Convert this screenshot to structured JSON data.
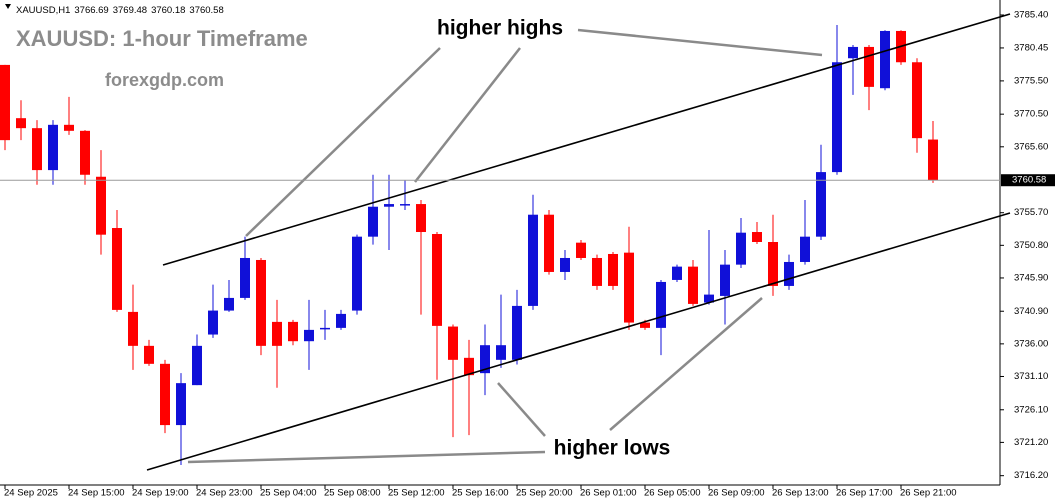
{
  "chart_data": {
    "type": "candlestick",
    "symbol": "XAUUSD,H1",
    "title": "XAUUSD: 1-hour Timeframe",
    "subtitle": "forexgdp.com",
    "annotations": [
      "higher highs",
      "higher lows"
    ],
    "up_color": "#1010d8",
    "down_color": "#ff0000",
    "categories": [
      "24 Sep 2025",
      null,
      null,
      null,
      "24 Sep 15:00",
      null,
      null,
      null,
      "24 Sep 19:00",
      null,
      null,
      null,
      "24 Sep 23:00",
      null,
      null,
      null,
      "25 Sep 04:00",
      null,
      null,
      null,
      "25 Sep 08:00",
      null,
      null,
      null,
      "25 Sep 12:00",
      null,
      null,
      null,
      "25 Sep 16:00",
      null,
      null,
      null,
      "25 Sep 20:00",
      null,
      null,
      null,
      "26 Sep 01:00",
      null,
      null,
      null,
      "26 Sep 05:00",
      null,
      null,
      null,
      "26 Sep 09:00",
      null,
      null,
      null,
      "26 Sep 13:00",
      null,
      null,
      null,
      "26 Sep 17:00",
      null,
      null,
      null,
      "26 Sep 21:00",
      null,
      null
    ],
    "open": [
      3777.9,
      3769.9,
      3768.4,
      3762.1,
      3768.9,
      3768.0,
      3761.1,
      3753.4,
      3740.8,
      3735.7,
      3733.0,
      3723.8,
      3729.8,
      3737.4,
      3741.0,
      3742.9,
      3748.6,
      3739.3,
      3739.3,
      3736.4,
      3738.3,
      3738.4,
      3741.0,
      3752.1,
      3756.6,
      3757.0,
      3757.0,
      3752.5,
      3738.6,
      3733.9,
      3731.6,
      3733.6,
      3733.6,
      3741.7,
      3755.4,
      3746.8,
      3751.2,
      3748.9,
      3749.5,
      3749.7,
      3739.2,
      3738.4,
      3745.6,
      3747.6,
      3742.2,
      3743.2,
      3747.9,
      3752.8,
      3751.3,
      3744.7,
      3748.3,
      3752.1,
      3761.8,
      3778.9,
      3780.6,
      3774.4,
      3783.0,
      3778.3,
      3766.69
    ],
    "high": [
      3777.9,
      3772.6,
      3769.6,
      3769.6,
      3773.1,
      3768.1,
      3765.1,
      3756.1,
      3744.9,
      3736.6,
      3733.6,
      3731.6,
      3737.4,
      3744.9,
      3745.6,
      3752.1,
      3748.9,
      3742.6,
      3739.6,
      3742.6,
      3741.1,
      3741.1,
      3752.4,
      3761.4,
      3761.4,
      3760.6,
      3757.6,
      3752.8,
      3738.9,
      3736.6,
      3738.9,
      3743.4,
      3744.1,
      3758.4,
      3756.1,
      3750.1,
      3751.6,
      3749.4,
      3749.8,
      3753.6,
      3739.6,
      3745.6,
      3747.9,
      3748.6,
      3753.1,
      3750.1,
      3754.9,
      3754.3,
      3755.4,
      3749.4,
      3757.6,
      3765.9,
      3783.9,
      3780.9,
      3780.9,
      3783.1,
      3783.1,
      3778.9,
      3769.48
    ],
    "low": [
      3765.1,
      3766.6,
      3759.9,
      3759.9,
      3767.4,
      3759.9,
      3749.4,
      3740.8,
      3732.1,
      3732.7,
      3722.6,
      3717.8,
      3729.8,
      3736.9,
      3740.8,
      3742.6,
      3734.3,
      3729.4,
      3735.8,
      3732.1,
      3736.6,
      3738.1,
      3740.4,
      3750.9,
      3750.1,
      3756.1,
      3740.4,
      3730.6,
      3722.0,
      3722.3,
      3728.3,
      3732.4,
      3732.9,
      3741.1,
      3746.4,
      3745.6,
      3748.6,
      3744.1,
      3744.1,
      3738.1,
      3738.1,
      3734.3,
      3745.3,
      3741.7,
      3741.9,
      3738.9,
      3747.4,
      3751.0,
      3743.2,
      3744.1,
      3747.9,
      3751.6,
      3761.4,
      3773.4,
      3771.1,
      3774.1,
      3777.9,
      3764.7,
      3760.18
    ],
    "close": [
      3766.6,
      3768.4,
      3762.1,
      3768.9,
      3768.0,
      3761.4,
      3752.4,
      3741.1,
      3735.7,
      3733.0,
      3723.8,
      3730.1,
      3735.7,
      3741.0,
      3742.9,
      3748.9,
      3735.7,
      3735.7,
      3736.4,
      3738.1,
      3738.4,
      3740.5,
      3752.1,
      3756.6,
      3757.0,
      3757.0,
      3752.8,
      3738.7,
      3733.6,
      3731.3,
      3735.8,
      3735.8,
      3741.7,
      3755.4,
      3746.8,
      3748.9,
      3748.9,
      3744.7,
      3744.7,
      3739.2,
      3738.4,
      3745.3,
      3747.6,
      3742.0,
      3743.4,
      3747.9,
      3752.7,
      3751.3,
      3744.7,
      3748.3,
      3752.1,
      3761.8,
      3778.3,
      3780.6,
      3774.6,
      3783.0,
      3778.3,
      3766.9,
      3760.58
    ],
    "ylim": [
      3714.8,
      3787.65
    ],
    "yticks": [
      {
        "value": 3785.4,
        "label": "3785.40"
      },
      {
        "value": 3780.45,
        "label": "3780.45"
      },
      {
        "value": 3775.5,
        "label": "3775.50"
      },
      {
        "value": 3770.5,
        "label": "3770.50"
      },
      {
        "value": 3765.6,
        "label": "3765.60"
      },
      {
        "value": 3755.7,
        "label": "3755.70"
      },
      {
        "value": 3750.8,
        "label": "3750.80"
      },
      {
        "value": 3745.9,
        "label": "3745.90"
      },
      {
        "value": 3740.9,
        "label": "3740.90"
      },
      {
        "value": 3736.0,
        "label": "3736.00"
      },
      {
        "value": 3731.1,
        "label": "3731.10"
      },
      {
        "value": 3726.1,
        "label": "3726.10"
      },
      {
        "value": 3721.2,
        "label": "3721.20"
      },
      {
        "value": 3716.2,
        "label": "3716.20"
      }
    ],
    "grid": false,
    "current_price_line": true
  }
}
